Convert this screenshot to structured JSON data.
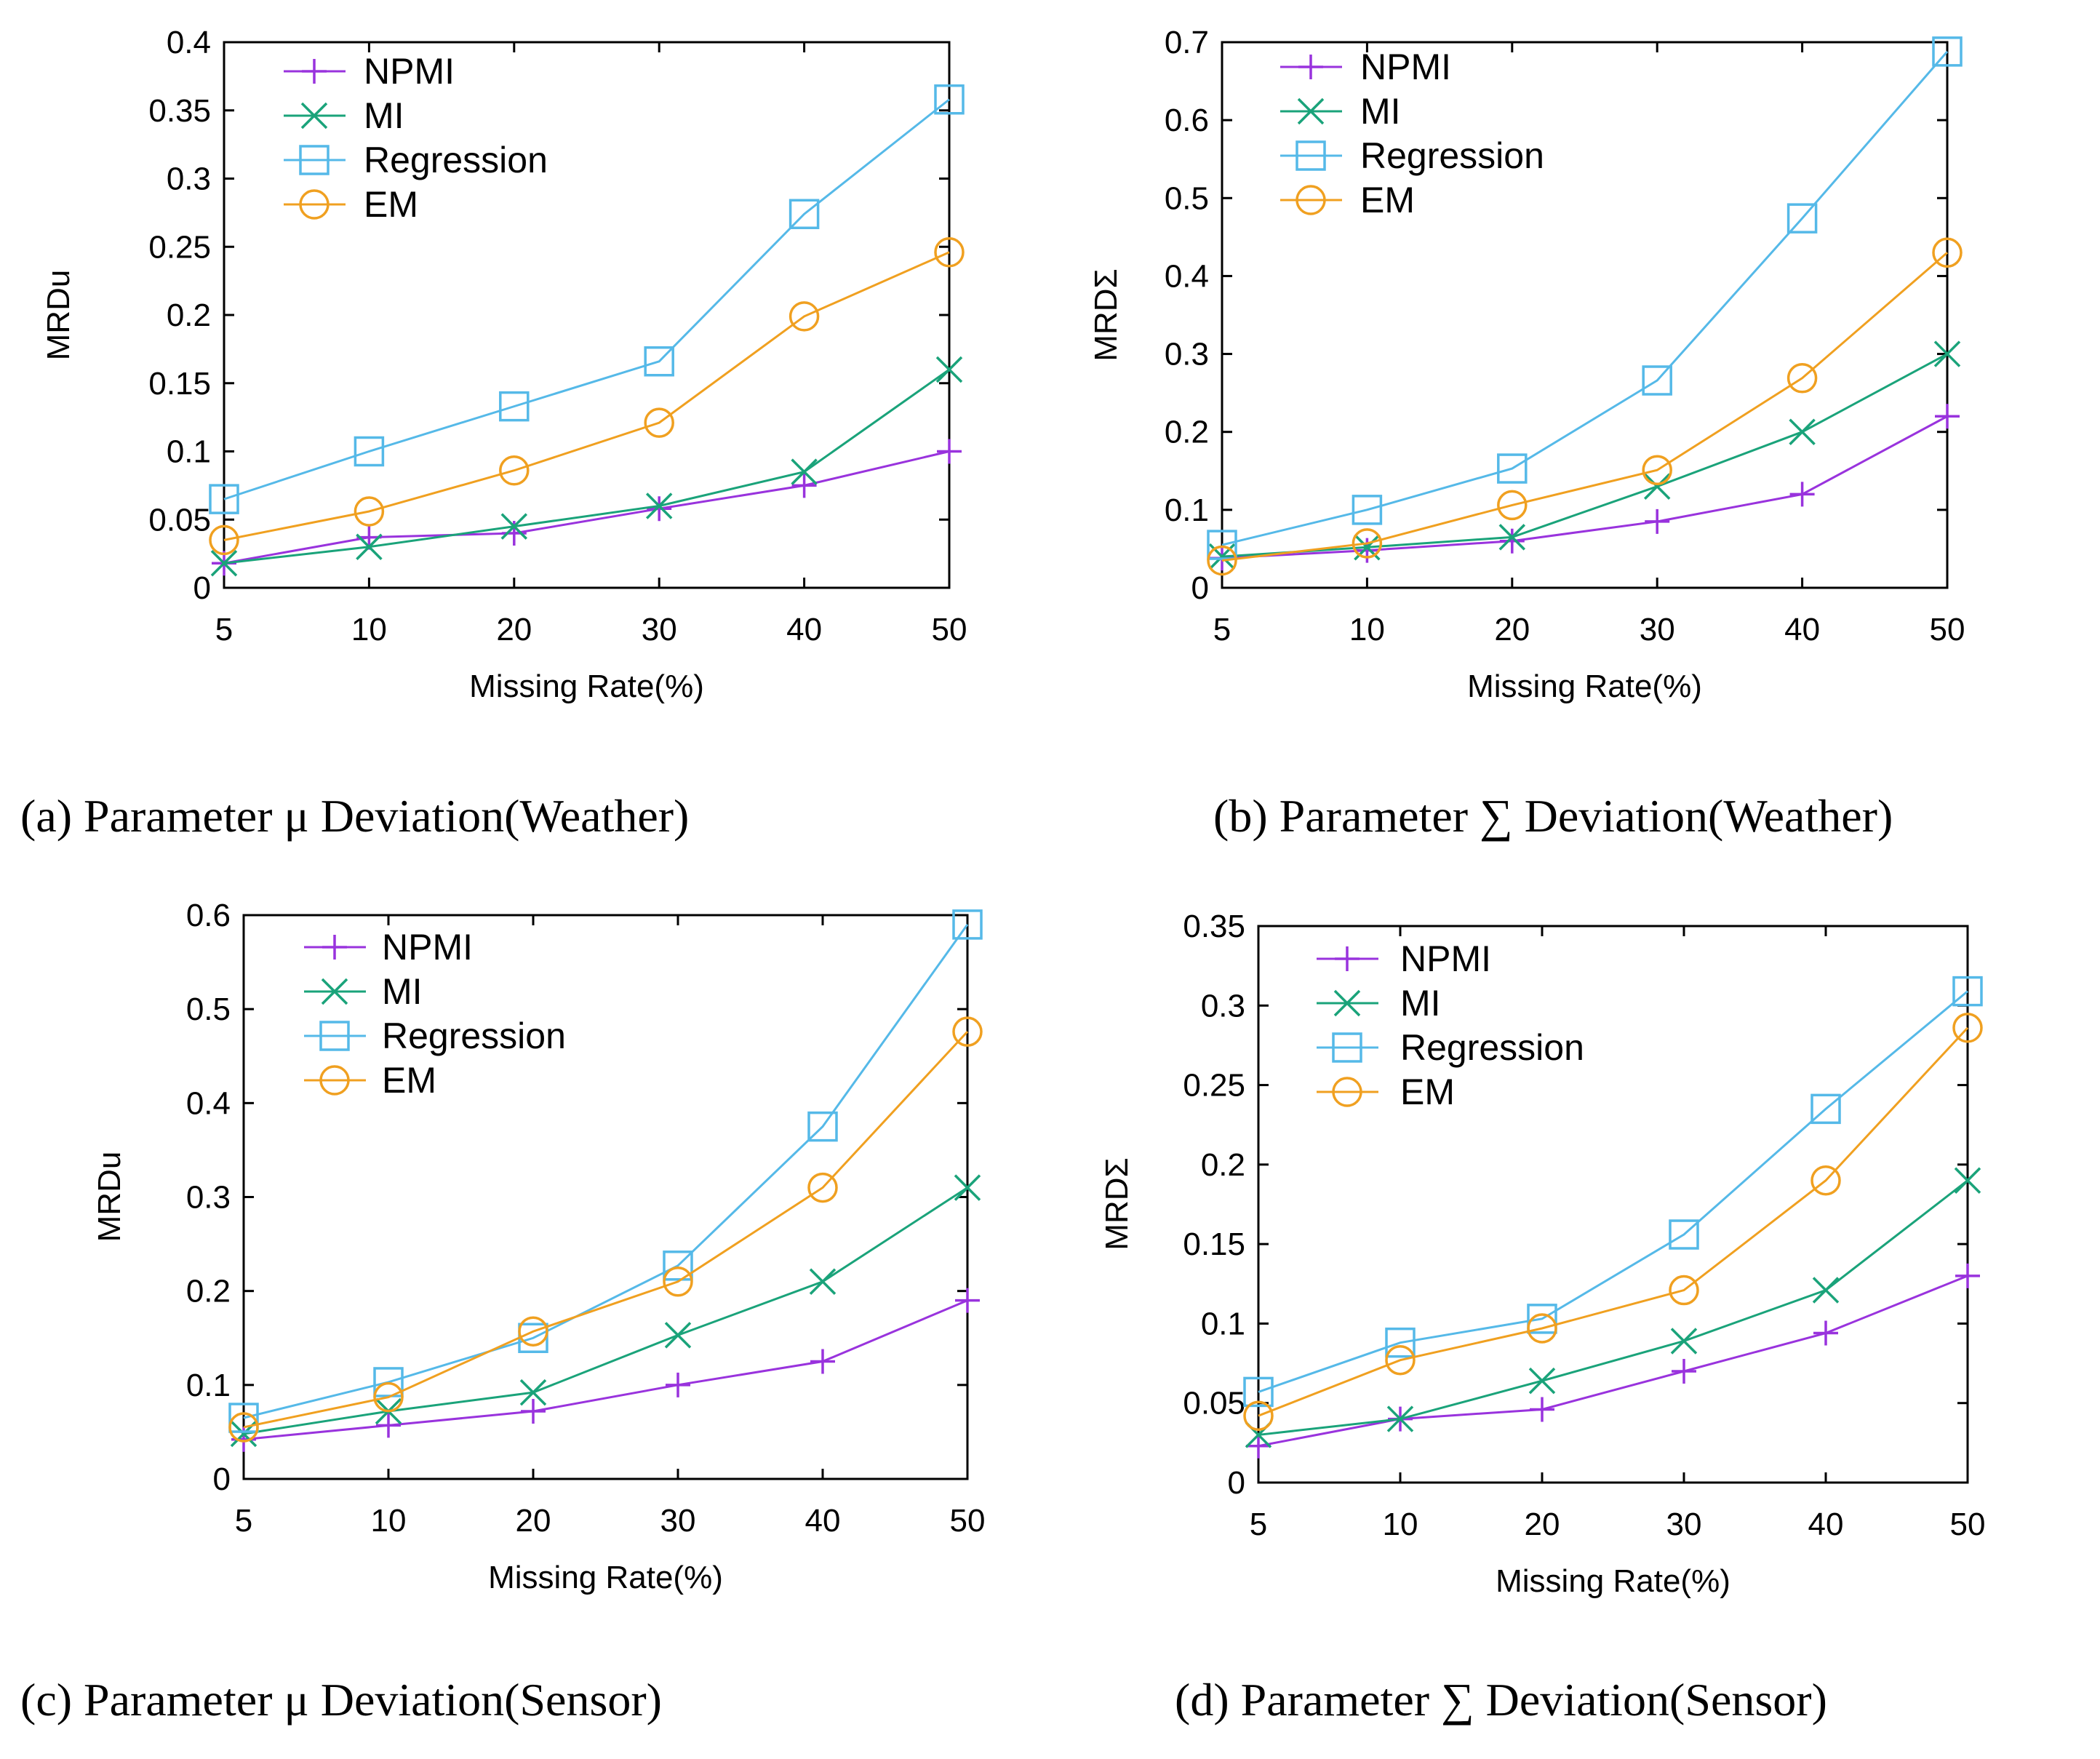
{
  "colors": {
    "NPMI": "#9933dd",
    "MI": "#1aa37a",
    "Regression": "#55b9e8",
    "EM": "#f0a020"
  },
  "chart_data": [
    {
      "type": "line",
      "id": "a",
      "caption": "(a) Parameter  μ  Deviation(Weather)",
      "categories": [
        "5",
        "10",
        "20",
        "30",
        "40",
        "50"
      ],
      "xlabel": "Missing Rate(%)",
      "ylabel": "MRDu",
      "ylim": [
        0,
        0.4
      ],
      "yticks": [
        "0",
        "0.05",
        "0.1",
        "0.15",
        "0.2",
        "0.25",
        "0.3",
        "0.35",
        "0.4"
      ],
      "legend_position": "top-left",
      "series": [
        {
          "name": "NPMI",
          "values": [
            0.018,
            0.037,
            0.04,
            0.058,
            0.075,
            0.1
          ]
        },
        {
          "name": "MI",
          "values": [
            0.018,
            0.03,
            0.045,
            0.06,
            0.085,
            0.16
          ]
        },
        {
          "name": "Regression",
          "values": [
            0.065,
            0.1,
            0.133,
            0.166,
            0.274,
            0.358
          ]
        },
        {
          "name": "EM",
          "values": [
            0.035,
            0.056,
            0.086,
            0.121,
            0.199,
            0.246
          ]
        }
      ]
    },
    {
      "type": "line",
      "id": "b",
      "caption": "(b) Parameter ∑ Deviation(Weather)",
      "categories": [
        "5",
        "10",
        "20",
        "30",
        "40",
        "50"
      ],
      "xlabel": "Missing Rate(%)",
      "ylabel": "MRDΣ",
      "ylim": [
        0,
        0.7
      ],
      "yticks": [
        "0",
        "0.1",
        "0.2",
        "0.3",
        "0.4",
        "0.5",
        "0.6",
        "0.7"
      ],
      "legend_position": "top-left",
      "series": [
        {
          "name": "NPMI",
          "values": [
            0.038,
            0.048,
            0.06,
            0.085,
            0.12,
            0.22
          ]
        },
        {
          "name": "MI",
          "values": [
            0.04,
            0.052,
            0.065,
            0.13,
            0.2,
            0.3
          ]
        },
        {
          "name": "Regression",
          "values": [
            0.055,
            0.1,
            0.153,
            0.266,
            0.474,
            0.688
          ]
        },
        {
          "name": "EM",
          "values": [
            0.035,
            0.057,
            0.106,
            0.151,
            0.269,
            0.43
          ]
        }
      ]
    },
    {
      "type": "line",
      "id": "c",
      "caption": "(c) Parameter  μ Deviation(Sensor)",
      "categories": [
        "5",
        "10",
        "20",
        "30",
        "40",
        "50"
      ],
      "xlabel": "Missing Rate(%)",
      "ylabel": "MRDu",
      "ylim": [
        0,
        0.6
      ],
      "yticks": [
        "0",
        "0.1",
        "0.2",
        "0.3",
        "0.4",
        "0.5",
        "0.6"
      ],
      "legend_position": "top-left",
      "series": [
        {
          "name": "NPMI",
          "values": [
            0.042,
            0.057,
            0.072,
            0.1,
            0.125,
            0.19
          ]
        },
        {
          "name": "MI",
          "values": [
            0.048,
            0.072,
            0.092,
            0.153,
            0.21,
            0.31
          ]
        },
        {
          "name": "Regression",
          "values": [
            0.065,
            0.103,
            0.15,
            0.227,
            0.375,
            0.59
          ]
        },
        {
          "name": "EM",
          "values": [
            0.055,
            0.087,
            0.157,
            0.21,
            0.31,
            0.476
          ]
        }
      ]
    },
    {
      "type": "line",
      "id": "d",
      "caption": "(d) Parameter ∑ Deviation(Sensor)",
      "categories": [
        "5",
        "10",
        "20",
        "30",
        "40",
        "50"
      ],
      "xlabel": "Missing Rate(%)",
      "ylabel": "MRDΣ",
      "ylim": [
        0,
        0.35
      ],
      "yticks": [
        "0",
        "0.05",
        "0.1",
        "0.15",
        "0.2",
        "0.25",
        "0.3",
        "0.35"
      ],
      "legend_position": "top-left",
      "series": [
        {
          "name": "NPMI",
          "values": [
            0.023,
            0.04,
            0.046,
            0.07,
            0.094,
            0.13
          ]
        },
        {
          "name": "MI",
          "values": [
            0.03,
            0.04,
            0.064,
            0.089,
            0.121,
            0.19
          ]
        },
        {
          "name": "Regression",
          "values": [
            0.057,
            0.088,
            0.103,
            0.156,
            0.235,
            0.309
          ]
        },
        {
          "name": "EM",
          "values": [
            0.042,
            0.077,
            0.097,
            0.121,
            0.19,
            0.286
          ]
        }
      ]
    }
  ]
}
